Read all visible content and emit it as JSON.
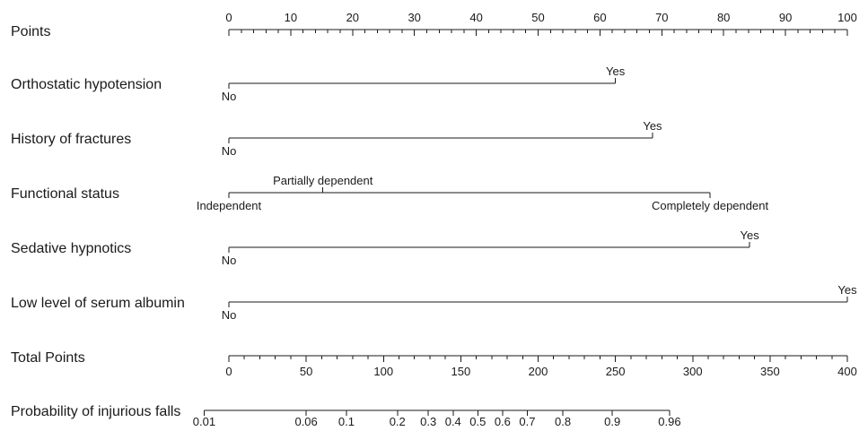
{
  "chart_data": {
    "type": "nomogram",
    "points_scale": {
      "label": "Points",
      "min": 0,
      "max": 100,
      "major_step": 10,
      "minor_step": 2,
      "tick_labels": [
        "0",
        "10",
        "20",
        "30",
        "40",
        "50",
        "60",
        "70",
        "80",
        "90",
        "100"
      ]
    },
    "predictors": [
      {
        "name": "Orthostatic hypotension",
        "levels": [
          {
            "label": "No",
            "points": 0,
            "label_side": "below"
          },
          {
            "label": "Yes",
            "points": 62.5,
            "label_side": "above"
          }
        ]
      },
      {
        "name": "History of fractures",
        "levels": [
          {
            "label": "No",
            "points": 0,
            "label_side": "below"
          },
          {
            "label": "Yes",
            "points": 68.5,
            "label_side": "above"
          }
        ]
      },
      {
        "name": "Functional status",
        "levels": [
          {
            "label": "Independent",
            "points": 0,
            "label_side": "below"
          },
          {
            "label": "Partially dependent",
            "points": 15.2,
            "label_side": "above"
          },
          {
            "label": "Completely dependent",
            "points": 77.8,
            "label_side": "below"
          }
        ]
      },
      {
        "name": "Sedative hypnotics",
        "levels": [
          {
            "label": "No",
            "points": 0,
            "label_side": "below"
          },
          {
            "label": "Yes",
            "points": 84.2,
            "label_side": "above"
          }
        ]
      },
      {
        "name": "Low level of serum albumin",
        "levels": [
          {
            "label": "No",
            "points": 0,
            "label_side": "below"
          },
          {
            "label": "Yes",
            "points": 100,
            "label_side": "above"
          }
        ]
      }
    ],
    "total_points_scale": {
      "label": "Total Points",
      "min": 0,
      "max": 400,
      "major_step": 50,
      "minor_step": 10,
      "tick_labels": [
        "0",
        "50",
        "100",
        "150",
        "200",
        "250",
        "300",
        "350",
        "400"
      ]
    },
    "probability_scale": {
      "label": "Probability of injurious falls",
      "ticks": [
        {
          "label": "0.01",
          "total_points": -16
        },
        {
          "label": "0.06",
          "total_points": 50
        },
        {
          "label": "0.1",
          "total_points": 76
        },
        {
          "label": "0.2",
          "total_points": 109
        },
        {
          "label": "0.3",
          "total_points": 129
        },
        {
          "label": "0.4",
          "total_points": 145
        },
        {
          "label": "0.5",
          "total_points": 161
        },
        {
          "label": "0.6",
          "total_points": 177
        },
        {
          "label": "0.7",
          "total_points": 193
        },
        {
          "label": "0.8",
          "total_points": 216
        },
        {
          "label": "0.9",
          "total_points": 248
        },
        {
          "label": "0.96",
          "total_points": 285
        }
      ]
    }
  }
}
